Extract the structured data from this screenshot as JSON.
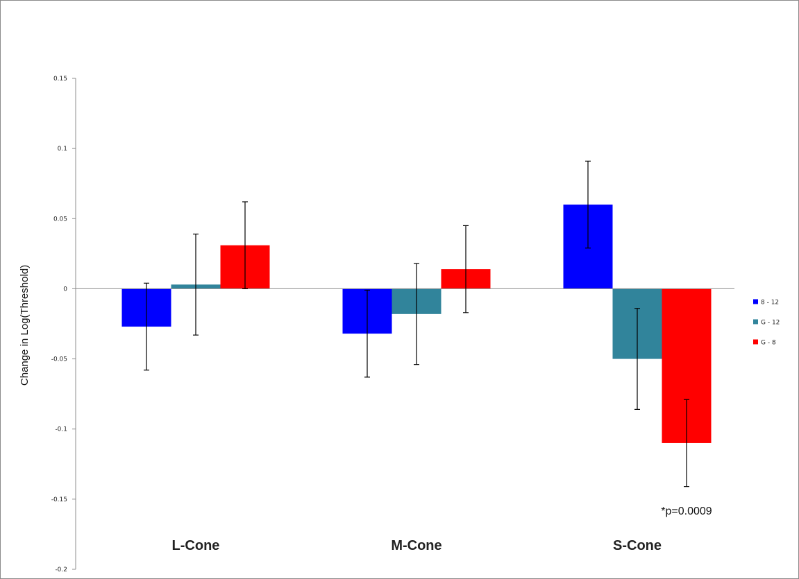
{
  "chart_data": {
    "type": "bar",
    "title": "",
    "xlabel": "",
    "ylabel": "Change in Log(Threshold)",
    "ylim": [
      -0.2,
      0.15
    ],
    "yticks": [
      0.15,
      0.1,
      0.05,
      0,
      -0.05,
      -0.1,
      -0.15,
      -0.2
    ],
    "ytick_labels": [
      "0.15",
      "0.1",
      "0.05",
      "0",
      "-0.05",
      "-0.1",
      "-0.15",
      "-0.2"
    ],
    "categories": [
      "L-Cone",
      "M-Cone",
      "S-Cone"
    ],
    "grid": false,
    "legend_position": "right",
    "series": [
      {
        "name": "8 - 12",
        "color": "#0000ff",
        "values": [
          -0.027,
          -0.032,
          0.06
        ],
        "errors": [
          0.031,
          0.031,
          0.031
        ]
      },
      {
        "name": "G - 12",
        "color": "#31849b",
        "values": [
          0.003,
          -0.018,
          -0.05
        ],
        "errors": [
          0.036,
          0.036,
          0.036
        ]
      },
      {
        "name": "G - 8",
        "color": "#ff0000",
        "values": [
          0.031,
          0.014,
          -0.11
        ],
        "errors": [
          0.031,
          0.031,
          0.031
        ]
      }
    ],
    "annotations": [
      {
        "text": "*p=0.0009",
        "category": "S-Cone",
        "series": "G - 8",
        "y": -0.158
      }
    ]
  }
}
